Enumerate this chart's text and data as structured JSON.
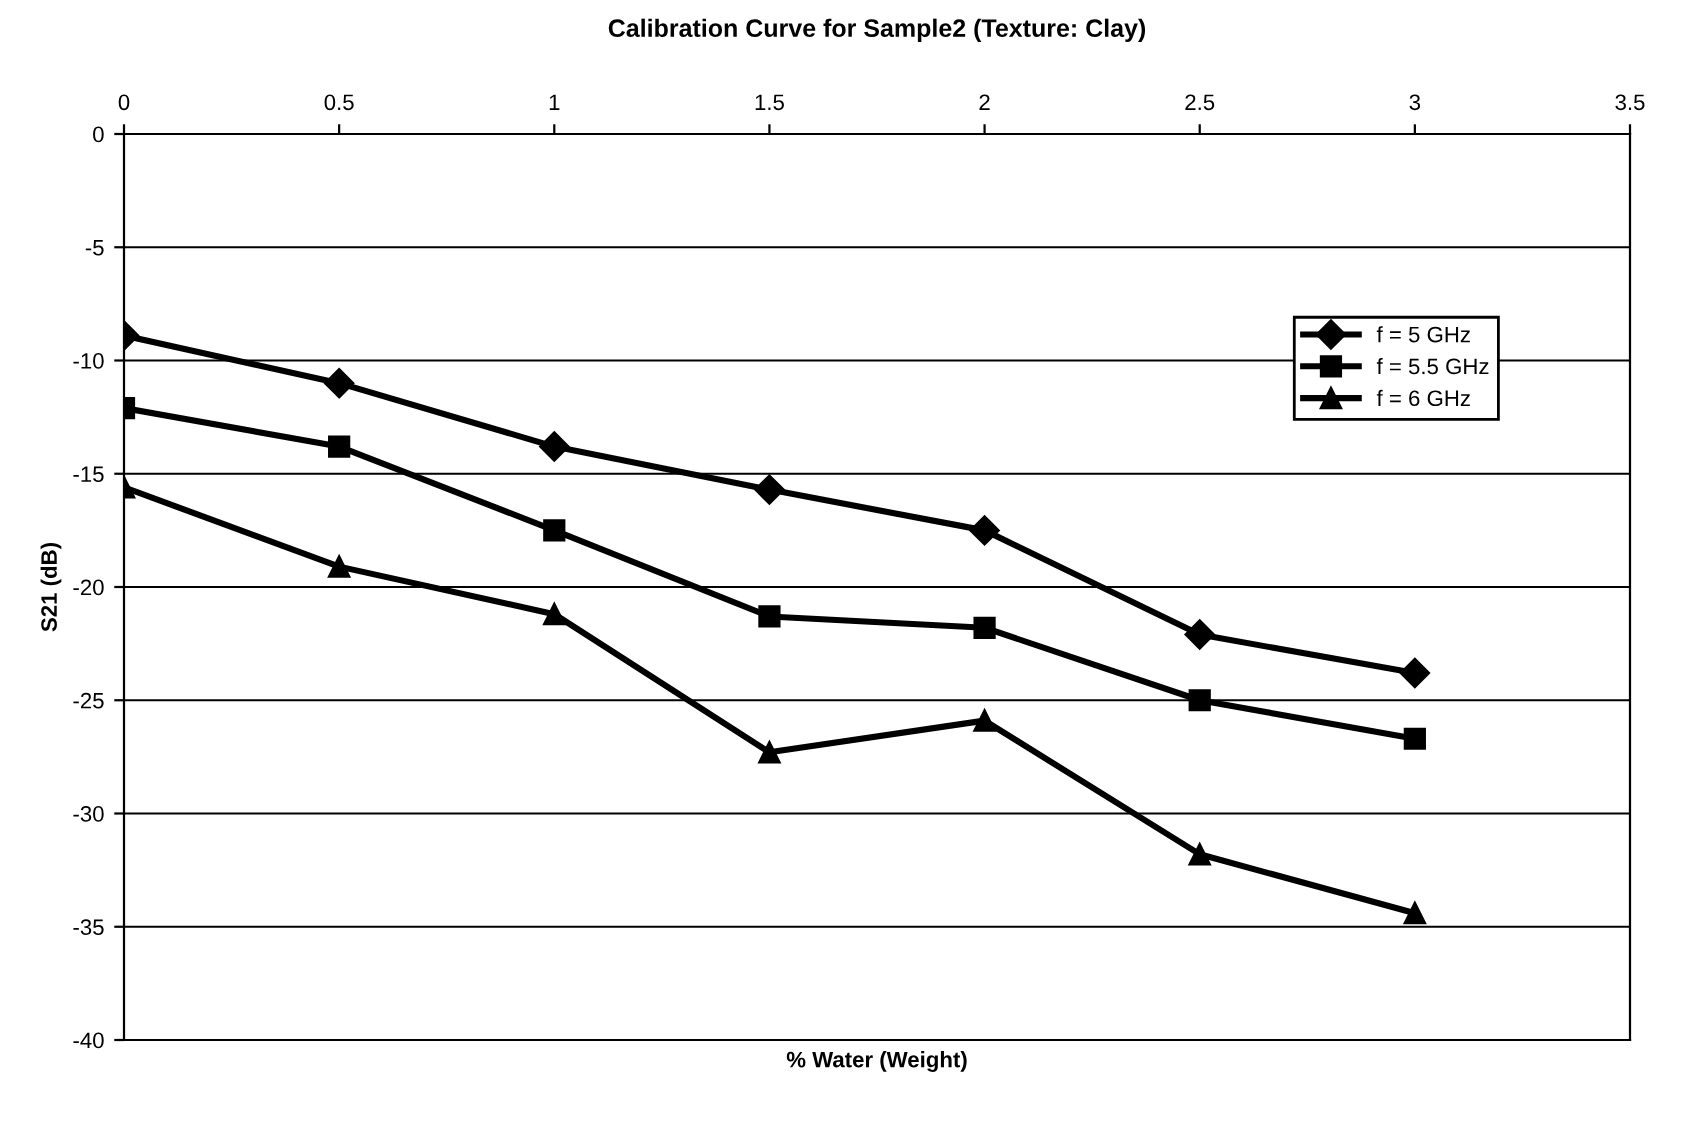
{
  "chart_data": {
    "type": "line",
    "title": "Calibration Curve for Sample2 (Texture: Clay)",
    "xlabel": "% Water (Weight)",
    "ylabel": "S21 (dB)",
    "x": [
      0,
      0.5,
      1,
      1.5,
      2,
      2.5,
      3
    ],
    "series": [
      {
        "name": "f = 5 GHz",
        "color": "#000000",
        "marker": "diamond",
        "values": [
          -8.9,
          -11.0,
          -13.8,
          -15.7,
          -17.5,
          -22.1,
          -23.8
        ]
      },
      {
        "name": "f = 5.5 GHz",
        "color": "#000000",
        "marker": "square",
        "values": [
          -12.1,
          -13.8,
          -17.5,
          -21.3,
          -21.8,
          -25.0,
          -26.7
        ]
      },
      {
        "name": "f = 6 GHz",
        "color": "#000000",
        "marker": "triangle",
        "values": [
          -15.6,
          -19.1,
          -21.2,
          -27.3,
          -25.9,
          -31.8,
          -34.4
        ]
      }
    ],
    "xlim": [
      0,
      3.5
    ],
    "xticks": [
      0,
      0.5,
      1,
      1.5,
      2,
      2.5,
      3,
      3.5
    ],
    "ylim": [
      -40,
      0
    ],
    "yticks": [
      -40,
      -35,
      -30,
      -25,
      -20,
      -15,
      -10,
      -5,
      0
    ],
    "grid": "y",
    "legend": "top right",
    "line_style": "solid"
  }
}
